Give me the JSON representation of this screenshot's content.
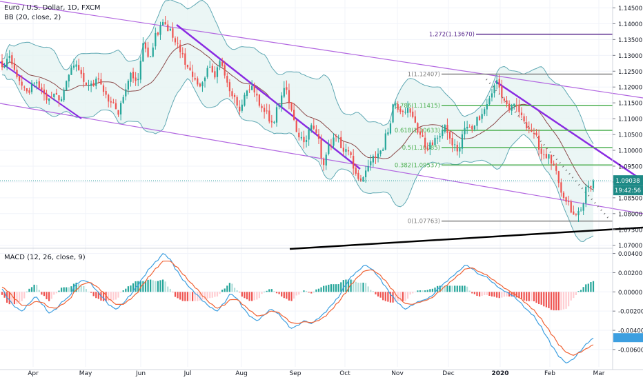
{
  "header": {
    "symbol_title": "Euro / U.S. Dollar, 1D, FXCM",
    "bb_label": "BB (20, close, 2)",
    "macd_label": "MACD (12, 26, close, 9)"
  },
  "price_badges": {
    "last_price": "1.09038",
    "countdown": "19:42:56"
  },
  "colors": {
    "up": "#26a69a",
    "down": "#ef5350",
    "bb_line": "#5fa8b3",
    "bb_fill": "#e6f4f3",
    "basis": "#8b4a4a",
    "channel": "#b266e0",
    "trend": "#8a2be2",
    "macd_line": "#3d9fe0",
    "signal_line": "#f06436",
    "fib": "#4caf50",
    "fib_gray": "#808080",
    "fib_top": "#5b2c8f",
    "badge_price": "#1e8a86",
    "badge_time": "#1e8a86"
  },
  "chart_data": [
    {
      "type": "candlestick",
      "ylim": [
        1.0695,
        1.1475
      ],
      "price_ticks": [
        "1.14500",
        "1.14000",
        "1.13500",
        "1.13000",
        "1.12500",
        "1.12000",
        "1.11500",
        "1.11000",
        "1.10500",
        "1.10000",
        "1.09500",
        "1.09000",
        "1.08500",
        "1.08000",
        "1.07500",
        "1.07000"
      ],
      "time_ticks": [
        "Apr",
        "May",
        "Jun",
        "Jul",
        "Aug",
        "Sep",
        "Oct",
        "Nov",
        "Dec",
        "2020",
        "Feb",
        "Mar"
      ],
      "anchors": [
        1.126,
        1.129,
        1.125,
        1.12,
        1.118,
        1.122,
        1.12,
        1.115,
        1.118,
        1.116,
        1.121,
        1.127,
        1.126,
        1.121,
        1.12,
        1.123,
        1.117,
        1.115,
        1.112,
        1.118,
        1.124,
        1.122,
        1.133,
        1.13,
        1.137,
        1.141,
        1.138,
        1.134,
        1.13,
        1.126,
        1.122,
        1.12,
        1.126,
        1.124,
        1.128,
        1.121,
        1.116,
        1.113,
        1.118,
        1.12,
        1.115,
        1.112,
        1.108,
        1.114,
        1.121,
        1.112,
        1.104,
        1.103,
        1.108,
        1.105,
        1.095,
        1.102,
        1.105,
        1.1,
        1.1,
        1.093,
        1.09,
        1.095,
        1.098,
        1.1,
        1.106,
        1.115,
        1.113,
        1.113,
        1.11,
        1.105,
        1.101,
        1.102,
        1.105,
        1.107,
        1.102,
        1.1,
        1.107,
        1.107,
        1.11,
        1.113,
        1.117,
        1.122,
        1.116,
        1.113,
        1.114,
        1.11,
        1.107,
        1.104,
        1.099,
        1.098,
        1.094,
        1.086,
        1.083,
        1.079,
        1.081,
        1.088,
        1.09
      ],
      "fib_levels": [
        {
          "label": "1.272(1.13670)",
          "price": 1.1367
        },
        {
          "label": "1(1.12407)",
          "price": 1.12407
        },
        {
          "label": "0.786(1.11415)",
          "price": 1.11415
        },
        {
          "label": "0.618(1.10633)",
          "price": 1.10633
        },
        {
          "label": "0.5(1.10085)",
          "price": 1.10085
        },
        {
          "label": "0.382(1.09537)",
          "price": 1.09537
        },
        {
          "label": "0(1.07763)",
          "price": 1.07763
        }
      ],
      "last_price": 1.09038
    },
    {
      "type": "macd",
      "ylim": [
        -0.0078,
        0.0044
      ],
      "ticks": [
        "0.00400",
        "0.00200",
        "0.00000",
        "-0.00200",
        "-0.00400",
        "-0.00600"
      ],
      "macd_anchors": [
        0.0003,
        -0.0008,
        -0.0016,
        -0.002,
        -0.0012,
        -0.0005,
        -0.0013,
        -0.0022,
        -0.0018,
        -0.001,
        -0.0005,
        0.0008,
        0.0012,
        0.001,
        0.0002,
        -0.0006,
        -0.0014,
        -0.0018,
        -0.0012,
        -0.0004,
        0.0005,
        0.0015,
        0.0025,
        0.0032,
        0.004,
        0.0034,
        0.0022,
        0.0012,
        0.0004,
        -0.0003,
        -0.001,
        -0.0016,
        -0.002,
        -0.0012,
        -0.0002,
        -0.0007,
        -0.0018,
        -0.0026,
        -0.003,
        -0.0024,
        -0.0018,
        -0.0022,
        -0.003,
        -0.0038,
        -0.0035,
        -0.003,
        -0.0033,
        -0.0028,
        -0.0022,
        -0.0014,
        -0.0006,
        0.0006,
        0.0016,
        0.0022,
        0.0028,
        0.0024,
        0.0016,
        0.0006,
        -0.0004,
        -0.0012,
        -0.0018,
        -0.0014,
        -0.001,
        -0.0008,
        -0.0004,
        0.0004,
        0.001,
        0.0016,
        0.0022,
        0.0028,
        0.0024,
        0.0018,
        0.0016,
        0.001,
        0.0004,
        0.0,
        -0.0004,
        -0.001,
        -0.0018,
        -0.0024,
        -0.0034,
        -0.0046,
        -0.0058,
        -0.0068,
        -0.0074,
        -0.007,
        -0.0062,
        -0.0054,
        -0.0048
      ],
      "signal_anchors": [
        0.0005,
        0.0,
        -0.0008,
        -0.0014,
        -0.0014,
        -0.001,
        -0.0011,
        -0.0016,
        -0.0017,
        -0.0013,
        -0.0008,
        0.0002,
        0.0008,
        0.001,
        0.0006,
        0.0,
        -0.0008,
        -0.0013,
        -0.0013,
        -0.0008,
        -0.0002,
        0.0008,
        0.0017,
        0.0025,
        0.0032,
        0.0032,
        0.0026,
        0.0018,
        0.001,
        0.0003,
        -0.0005,
        -0.0012,
        -0.0017,
        -0.0014,
        -0.0008,
        -0.0008,
        -0.0014,
        -0.002,
        -0.0025,
        -0.0024,
        -0.002,
        -0.0021,
        -0.0026,
        -0.0032,
        -0.0033,
        -0.0031,
        -0.0032,
        -0.003,
        -0.0026,
        -0.0019,
        -0.0011,
        -0.0002,
        0.0008,
        0.0016,
        0.0022,
        0.0023,
        0.0019,
        0.0012,
        0.0003,
        -0.0006,
        -0.0012,
        -0.0013,
        -0.0011,
        -0.0009,
        -0.0006,
        0.0,
        0.0006,
        0.0012,
        0.0018,
        0.0024,
        0.0025,
        0.0021,
        0.0018,
        0.0013,
        0.0008,
        0.0003,
        -0.0001,
        -0.0006,
        -0.0012,
        -0.0018,
        -0.0026,
        -0.0036,
        -0.0046,
        -0.0056,
        -0.0063,
        -0.0066,
        -0.0063,
        -0.0059,
        -0.0055
      ]
    }
  ]
}
